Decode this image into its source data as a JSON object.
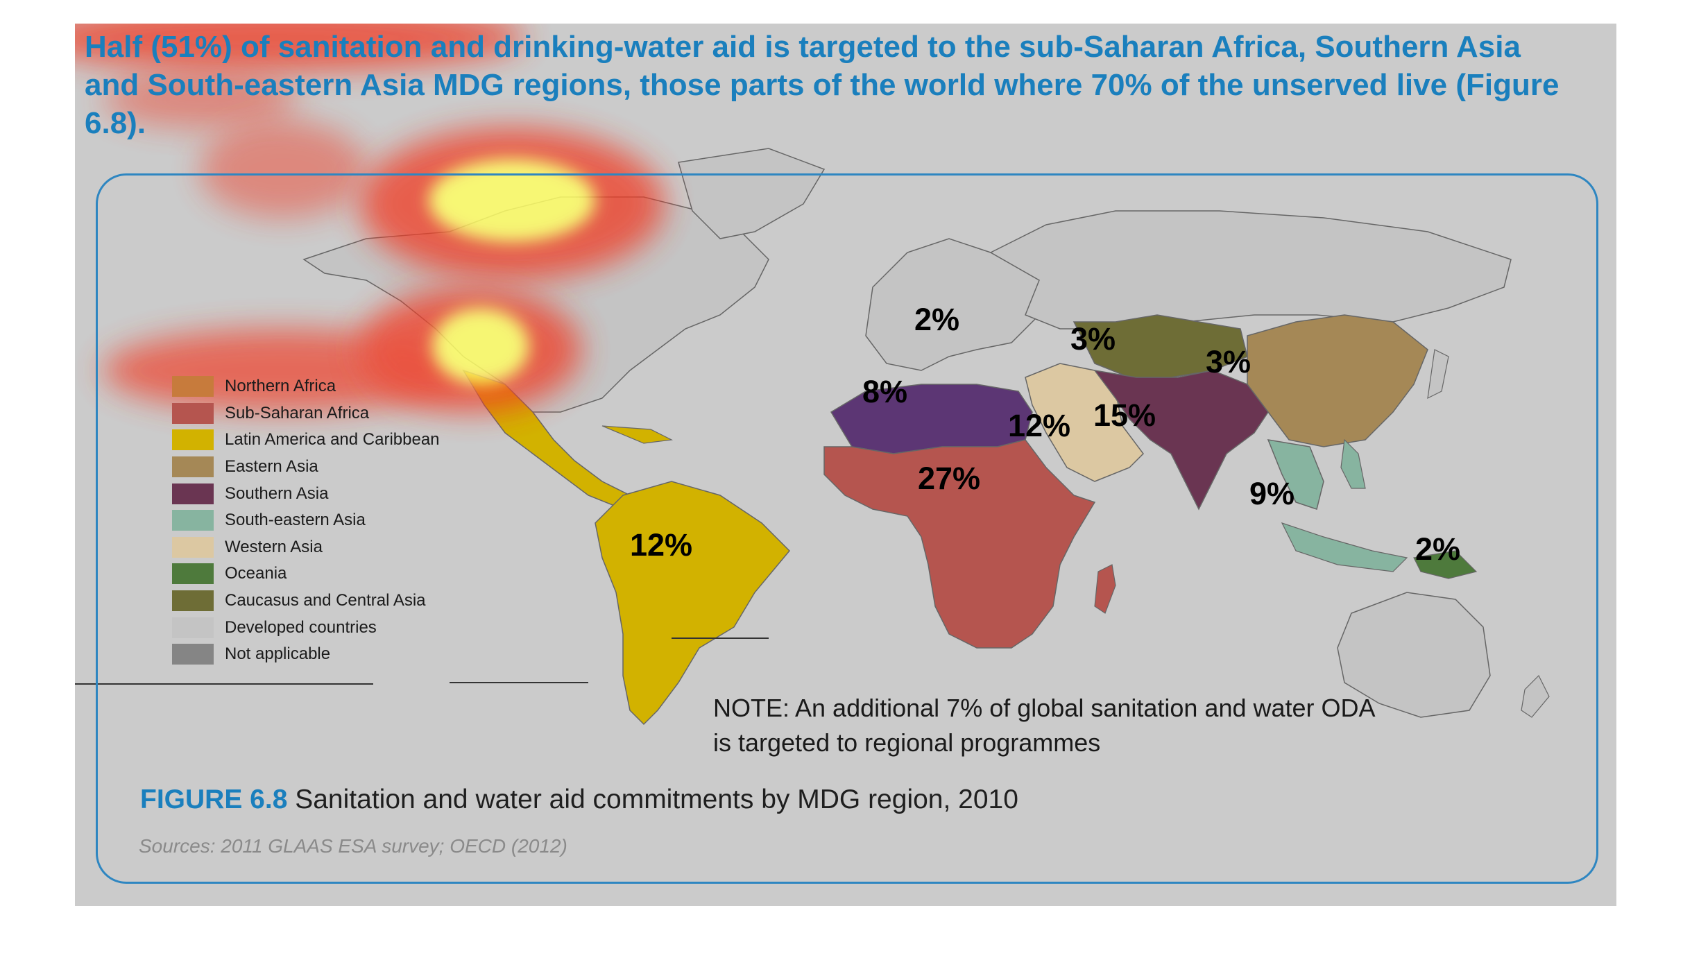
{
  "headline": "Half (51%) of sanitation and drinking-water aid is targeted to the sub-Saharan Africa, Southern Asia and South-eastern Asia MDG regions, those parts of the world where 70% of the unserved live (Figure 6.8).",
  "legend": [
    {
      "label": "Northern Africa",
      "color": "#c77b3c"
    },
    {
      "label": "Sub-Saharan Africa",
      "color": "#b5554f"
    },
    {
      "label": "Latin America and Caribbean",
      "color": "#d2b200"
    },
    {
      "label": "Eastern Asia",
      "color": "#a58856"
    },
    {
      "label": "Southern Asia",
      "color": "#6a3552"
    },
    {
      "label": "South-eastern Asia",
      "color": "#87b4a0"
    },
    {
      "label": "Western Asia",
      "color": "#dcc8a2"
    },
    {
      "label": "Oceania",
      "color": "#4e7a3c"
    },
    {
      "label": "Caucasus and Central Asia",
      "color": "#6e6d36"
    },
    {
      "label": "Developed countries",
      "color": "#c4c4c4"
    },
    {
      "label": "Not applicable",
      "color": "#858585"
    }
  ],
  "region_labels": {
    "europe": "2%",
    "central_asia": "3%",
    "eastern_asia": "3%",
    "northern_africa": "8%",
    "western_asia": "12%",
    "southern_asia": "15%",
    "sub_saharan_africa": "27%",
    "south_eastern_asia": "9%",
    "oceania": "2%",
    "latin_america": "12%"
  },
  "note": {
    "line1": "NOTE: An additional 7% of global sanitation and water ODA",
    "line2": "is targeted to regional programmes"
  },
  "figure": {
    "label": "FIGURE 6.8",
    "title": "Sanitation and water aid commitments by MDG region, 2010"
  },
  "sources": "Sources: 2011 GLAAS ESA survey; OECD (2012)",
  "colors": {
    "panel": "#cbcbcb",
    "accent": "#1a7fbd",
    "frame": "#2e86c1",
    "land_developed": "#c4c4c4",
    "heat_red": "#f03c28",
    "heat_yellow": "#ffff66"
  }
}
